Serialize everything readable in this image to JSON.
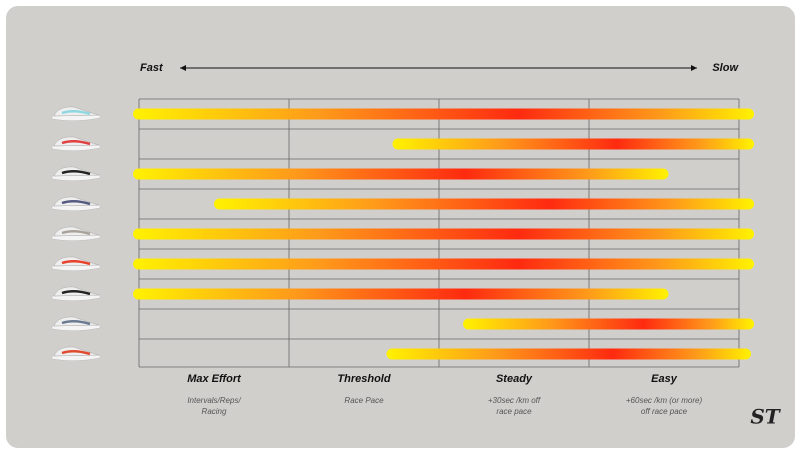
{
  "chart_data": {
    "type": "range-bar",
    "axis_start": "Fast",
    "axis_end": "Slow",
    "zones": [
      {
        "label": "Max Effort",
        "note": [
          "Intervals/Reps/",
          "Racing"
        ]
      },
      {
        "label": "Threshold",
        "note": [
          "Race Pace"
        ]
      },
      {
        "label": "Steady",
        "note": [
          "+30sec /km off",
          "race pace"
        ]
      },
      {
        "label": "Easy",
        "note": [
          "+60sec /km (or more)",
          "off race pace"
        ]
      }
    ],
    "categories": [
      null,
      null,
      null,
      null,
      null,
      null,
      null,
      null,
      null
    ],
    "values": [
      [
        -0.04,
        4.1
      ],
      [
        1.69,
        4.1
      ],
      [
        -0.04,
        3.53
      ],
      [
        0.5,
        4.1
      ],
      [
        -0.04,
        4.1
      ],
      [
        -0.04,
        4.1
      ],
      [
        -0.04,
        3.53
      ],
      [
        2.16,
        4.1
      ],
      [
        1.65,
        4.08
      ]
    ],
    "xlim": [
      0,
      4
    ],
    "xticks": [
      0,
      1,
      2,
      3,
      4
    ],
    "grid": true,
    "gradient": [
      "#fff200",
      "#ff9a1a",
      "#ff2a10"
    ]
  }
}
